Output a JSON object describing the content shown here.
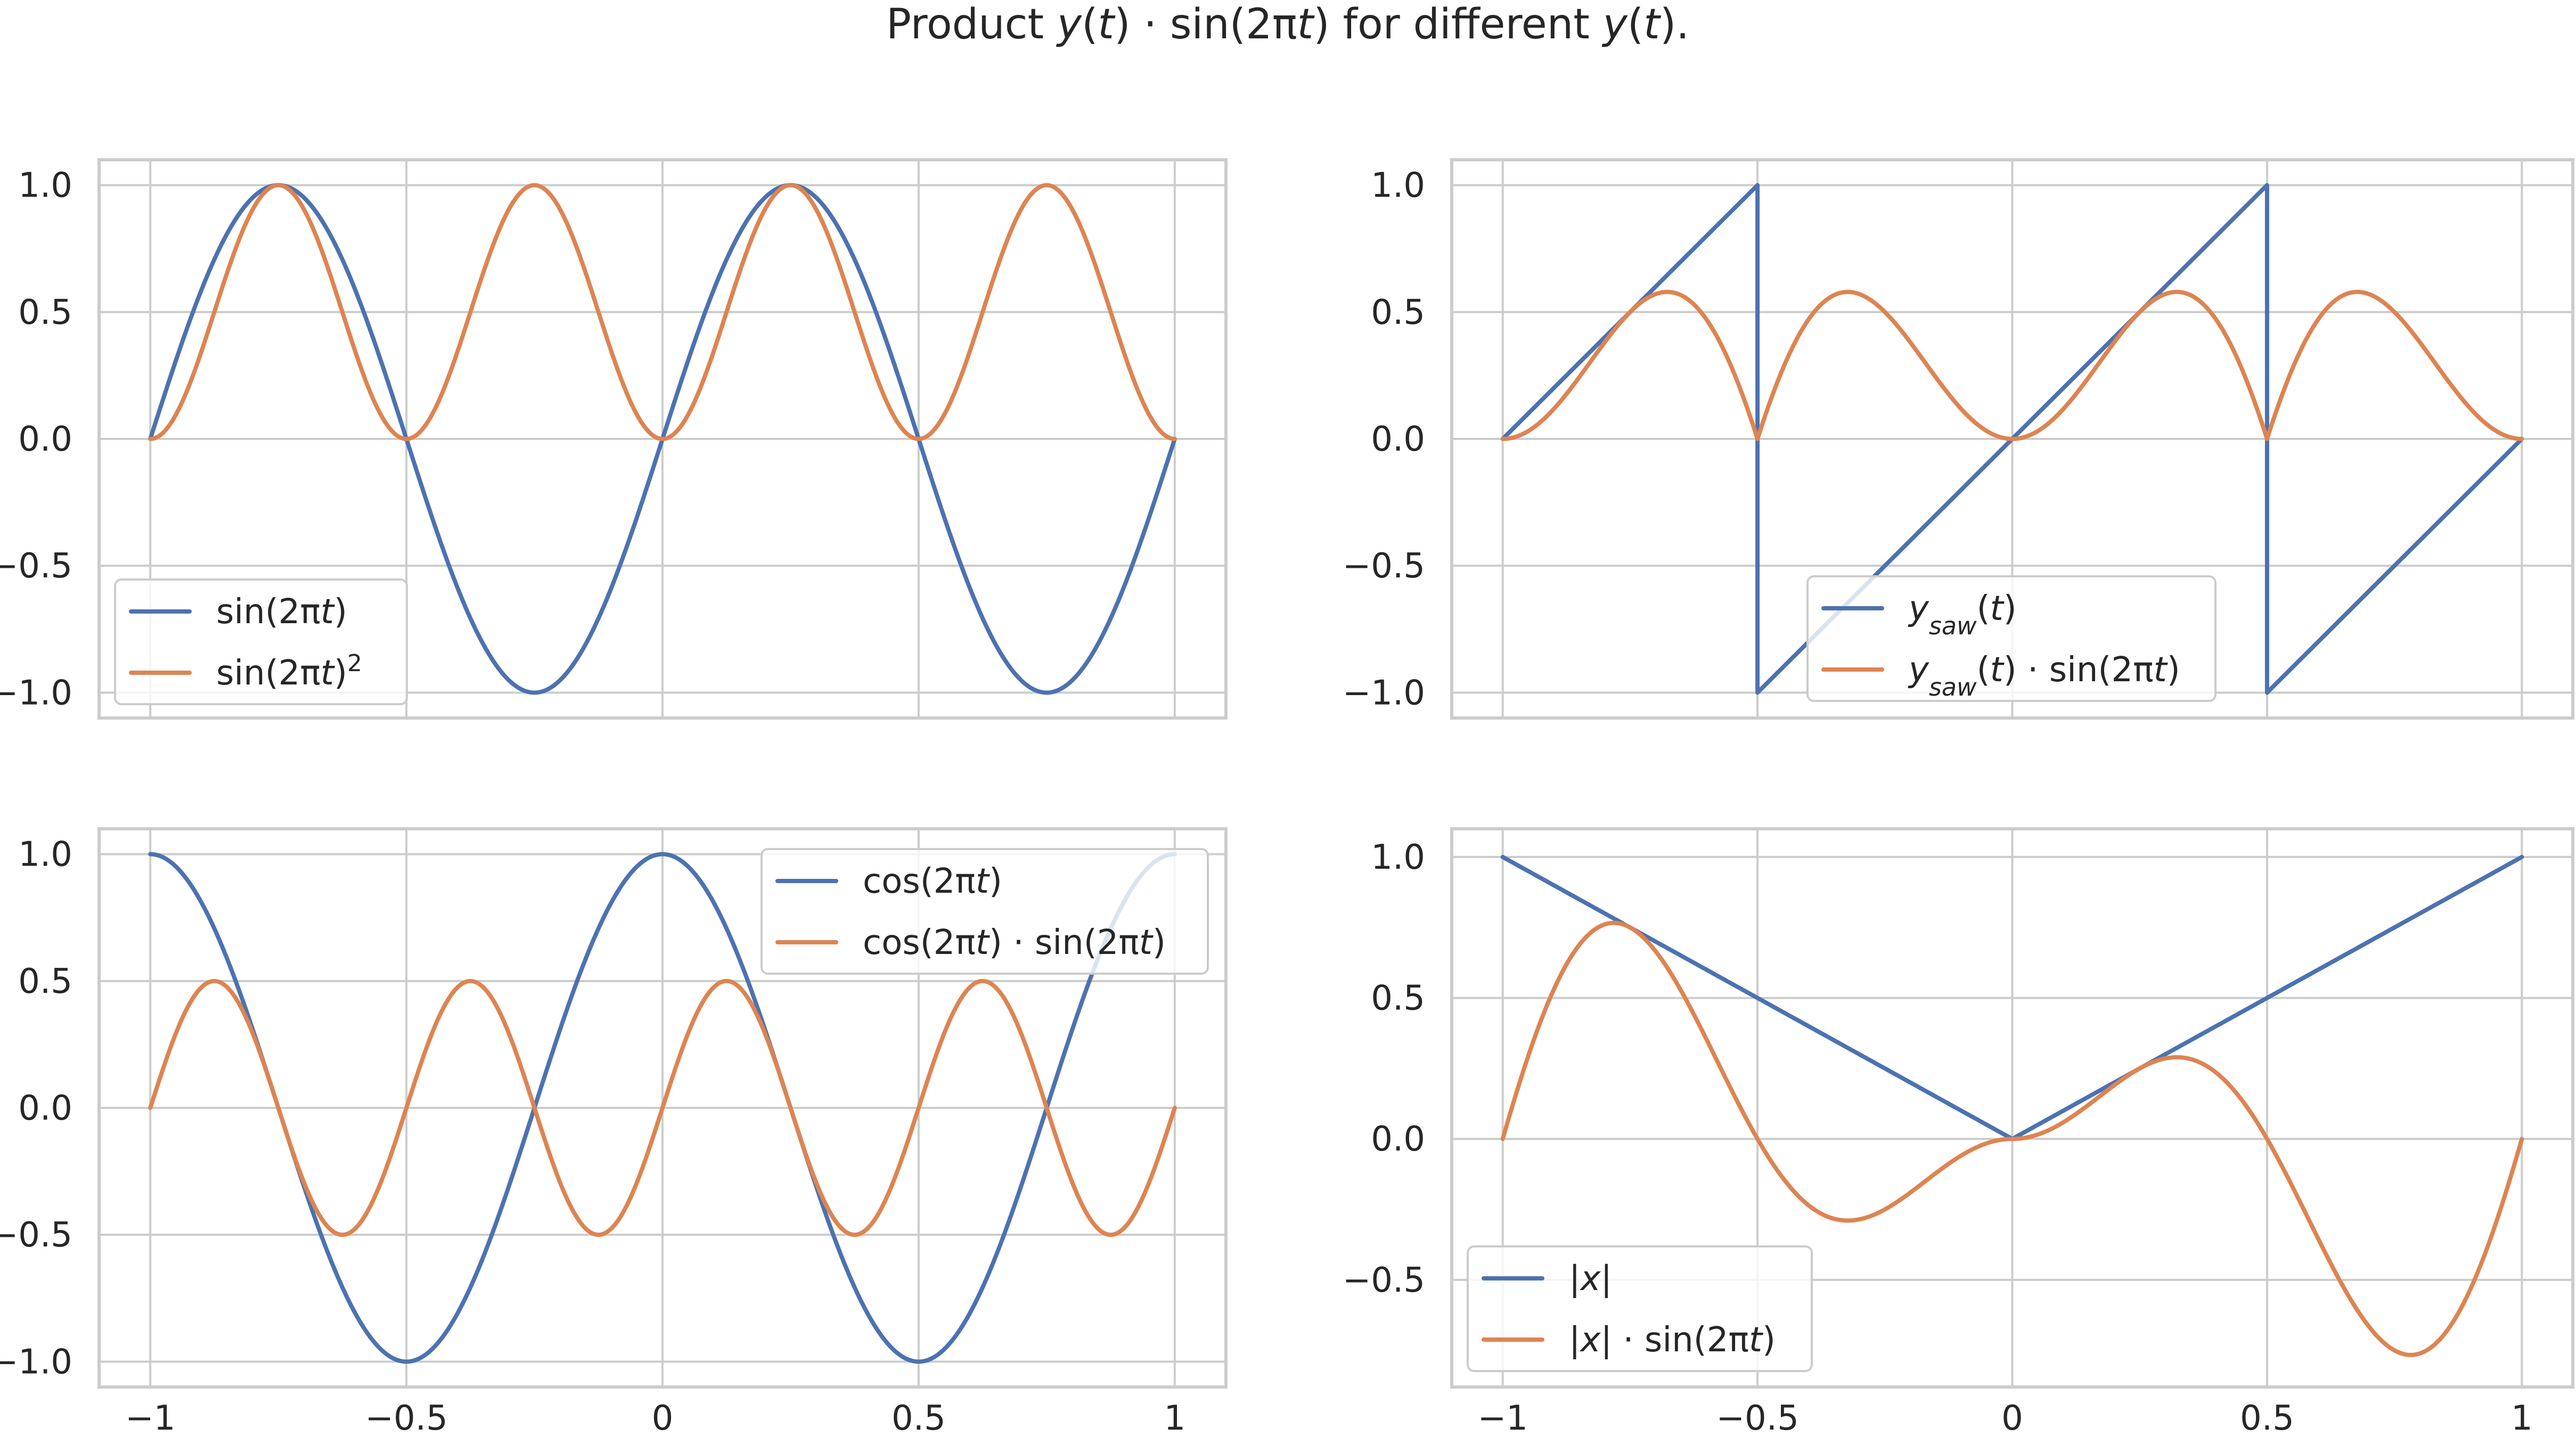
{
  "figure": {
    "title": {
      "pre": "Product ",
      "y1": "y",
      "p1a": "(",
      "t1": "t",
      "p1b": ") · sin(2π",
      "t2": "t",
      "p2": ") for different ",
      "y2": "y",
      "p3a": "(",
      "t3": "t",
      "p3b": ")."
    }
  },
  "colors": {
    "series1": "#4c72b0",
    "series2": "#dd8452",
    "grid": "#cccccc",
    "text": "#262626",
    "background": "#ffffff"
  },
  "chart_data": [
    {
      "id": "top-left",
      "type": "line",
      "xlim": [
        -1.1,
        1.1
      ],
      "ylim": [
        -1.1,
        1.1
      ],
      "grid": true,
      "x_ticks": [
        -1,
        -0.5,
        0,
        0.5,
        1
      ],
      "y_ticks": [
        -1.0,
        -0.5,
        0.0,
        0.5,
        1.0
      ],
      "y_tick_labels": [
        "−1.0",
        "−0.5",
        "0.0",
        "0.5",
        "1.0"
      ],
      "legend_position": "lower-left",
      "series": [
        {
          "key": "sin",
          "color": "#4c72b0",
          "label": {
            "a": "sin(2π",
            "b": "t",
            "c": ")"
          }
        },
        {
          "key": "sin_squared",
          "color": "#dd8452",
          "label": {
            "a": "sin(2π",
            "b": "t",
            "c": ")",
            "sup": "2"
          }
        }
      ]
    },
    {
      "id": "top-right",
      "type": "line",
      "xlim": [
        -1.1,
        1.1
      ],
      "ylim": [
        -1.1,
        1.1
      ],
      "grid": true,
      "x_ticks": [
        -1,
        -0.5,
        0,
        0.5,
        1
      ],
      "y_ticks": [
        -1.0,
        -0.5,
        0.0,
        0.5,
        1.0
      ],
      "y_tick_labels": [
        "−1.0",
        "−0.5",
        "0.0",
        "0.5",
        "1.0"
      ],
      "legend_position": "lower-right",
      "series": [
        {
          "key": "saw",
          "color": "#4c72b0",
          "label": {
            "y": "y",
            "sub": "saw",
            "p1": "(",
            "t": "t",
            "p2": ")"
          }
        },
        {
          "key": "saw_times_sin",
          "color": "#dd8452",
          "label": {
            "y": "y",
            "sub": "saw",
            "p1": "(",
            "t": "t",
            "p2": ") · sin(2π",
            "t2": "t",
            "p3": ")"
          }
        }
      ]
    },
    {
      "id": "bottom-left",
      "type": "line",
      "xlim": [
        -1.1,
        1.1
      ],
      "ylim": [
        -1.1,
        1.1
      ],
      "grid": true,
      "x_ticks": [
        -1,
        -0.5,
        0,
        0.5,
        1
      ],
      "x_tick_labels": [
        "−1",
        "−0.5",
        "0",
        "0.5",
        "1"
      ],
      "y_ticks": [
        -1.0,
        -0.5,
        0.0,
        0.5,
        1.0
      ],
      "y_tick_labels": [
        "−1.0",
        "−0.5",
        "0.0",
        "0.5",
        "1.0"
      ],
      "legend_position": "upper-right",
      "series": [
        {
          "key": "cos",
          "color": "#4c72b0",
          "label": {
            "a": "cos(2π",
            "b": "t",
            "c": ")"
          }
        },
        {
          "key": "cos_times_sin",
          "color": "#dd8452",
          "label": {
            "a": "cos(2π",
            "b": "t",
            "c": ") · sin(2π",
            "d": "t",
            "e": ")"
          }
        }
      ]
    },
    {
      "id": "bottom-right",
      "type": "line",
      "xlim": [
        -1.1,
        1.1
      ],
      "ylim": [
        -0.88,
        1.1
      ],
      "grid": true,
      "x_ticks": [
        -1,
        -0.5,
        0,
        0.5,
        1
      ],
      "x_tick_labels": [
        "−1",
        "−0.5",
        "0",
        "0.5",
        "1"
      ],
      "y_ticks": [
        -0.5,
        0.0,
        0.5,
        1.0
      ],
      "y_tick_labels": [
        "−0.5",
        "0.0",
        "0.5",
        "1.0"
      ],
      "legend_position": "lower-left",
      "series": [
        {
          "key": "abs",
          "color": "#4c72b0",
          "label": {
            "a": "|",
            "b": "x",
            "c": "|"
          }
        },
        {
          "key": "abs_times_sin",
          "color": "#dd8452",
          "label": {
            "a": "|",
            "b": "x",
            "c": "| · sin(2π",
            "d": "t",
            "e": ")"
          }
        }
      ]
    }
  ]
}
